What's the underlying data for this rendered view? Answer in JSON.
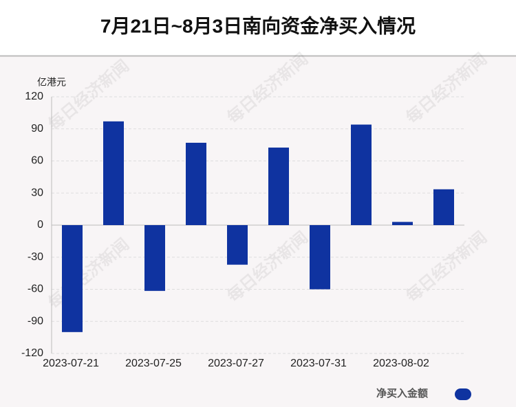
{
  "chart_data": {
    "type": "bar",
    "title": "7月21日~8月3日南向资金净买入情况",
    "y_label": "亿港元",
    "watermark": "每日经济新闻",
    "categories": [
      "2023-07-21",
      null,
      "2023-07-25",
      null,
      "2023-07-27",
      null,
      "2023-07-31",
      null,
      "2023-08-02",
      null
    ],
    "series": [
      {
        "name": "净买入金额",
        "color": "#0f33a0",
        "values": [
          -100,
          97,
          -61.5,
          77,
          -37,
          72.5,
          -60,
          94,
          3,
          33.5
        ]
      }
    ],
    "ylim": [
      -120,
      120
    ],
    "yticks": [
      -120,
      -90,
      -60,
      -30,
      0,
      30,
      60,
      90,
      120
    ],
    "grid": true
  }
}
